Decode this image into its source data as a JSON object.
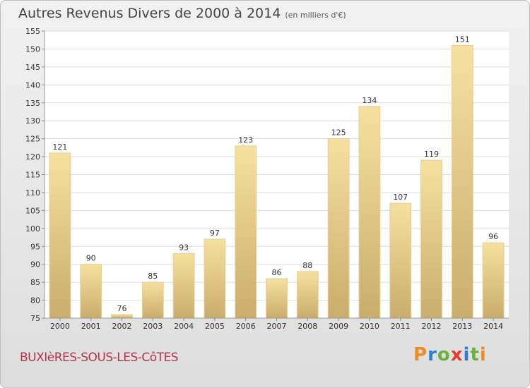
{
  "header": {
    "title": "Autres Revenus Divers de 2000 à 2014",
    "subtitle": "(en milliers d'€)"
  },
  "footer": {
    "commune": "BUXIèRES-SOUS-LES-CôTES",
    "logo": "Proxiti"
  },
  "colors": {
    "bar_top": "#f6e0a0",
    "bar_bottom": "#c9ad6c",
    "logo_letters": [
      "#f08a24",
      "#2a7fd4",
      "#6ab33c",
      "#e8392b",
      "#2a7fd4",
      "#6ab33c",
      "#f08a24"
    ]
  },
  "chart_data": {
    "type": "bar",
    "title": "Autres Revenus Divers de 2000 à 2014",
    "subtitle": "(en milliers d'€)",
    "categories": [
      "2000",
      "2001",
      "2002",
      "2003",
      "2004",
      "2005",
      "2006",
      "2007",
      "2008",
      "2009",
      "2010",
      "2011",
      "2012",
      "2013",
      "2014"
    ],
    "values": [
      121,
      90,
      76,
      85,
      93,
      97,
      123,
      86,
      88,
      125,
      134,
      107,
      119,
      151,
      96
    ],
    "ylim": [
      75,
      155
    ],
    "yticks": [
      75,
      80,
      85,
      90,
      95,
      100,
      105,
      110,
      115,
      120,
      125,
      130,
      135,
      140,
      145,
      150,
      155
    ],
    "grid": true,
    "data_labels": true
  }
}
